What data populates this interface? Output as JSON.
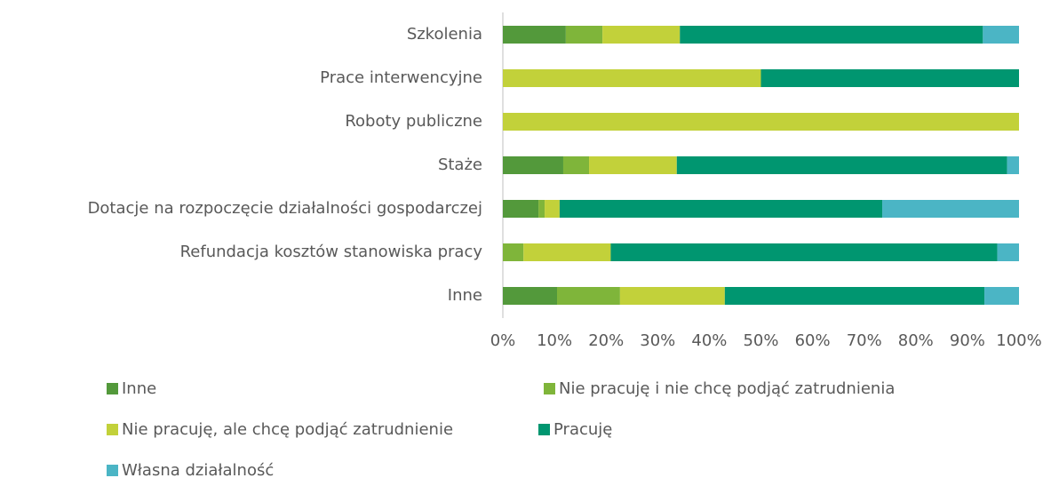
{
  "chart_data": {
    "type": "stacked_bar_horizontal",
    "categories": [
      "Szkolenia",
      "Prace interwencyjne",
      "Roboty publiczne",
      "Staże",
      "Dotacje na rozpoczęcie działalności gospodarczej",
      "Refundacja kosztów stanowiska pracy",
      "Inne"
    ],
    "series": [
      {
        "name": "Inne",
        "color": "#53993b",
        "values": [
          12.2,
          0,
          0,
          11.7,
          6.9,
          0,
          10.5
        ]
      },
      {
        "name": "Nie pracuję i nie chcę podjąć zatrudnienia",
        "color": "#7fb53a",
        "values": [
          7.1,
          0,
          0,
          5.0,
          1.2,
          4.0,
          12.2
        ]
      },
      {
        "name": "Nie pracuję, ale chcę podjąć zatrudnienie",
        "color": "#c2d13a",
        "values": [
          15.0,
          50,
          100,
          17.0,
          2.9,
          16.9,
          20.3
        ]
      },
      {
        "name": "Pracuję",
        "color": "#009670",
        "values": [
          58.7,
          50,
          0,
          64.0,
          62.5,
          74.9,
          50.3
        ]
      },
      {
        "name": "Własna działalność",
        "color": "#4bb5c5",
        "values": [
          7.0,
          0,
          0,
          2.3,
          26.5,
          4.2,
          6.7
        ]
      }
    ],
    "xlim": [
      0,
      100
    ],
    "xticks": [
      {
        "value": 0,
        "label": "0%"
      },
      {
        "value": 10,
        "label": "10%"
      },
      {
        "value": 20,
        "label": "20%"
      },
      {
        "value": 30,
        "label": "30%"
      },
      {
        "value": 40,
        "label": "40%"
      },
      {
        "value": 50,
        "label": "50%"
      },
      {
        "value": 60,
        "label": "60%"
      },
      {
        "value": 70,
        "label": "70%"
      },
      {
        "value": 80,
        "label": "80%"
      },
      {
        "value": 90,
        "label": "90%"
      },
      {
        "value": 100,
        "label": "100%"
      }
    ],
    "grid": false,
    "legend": "bottom"
  }
}
